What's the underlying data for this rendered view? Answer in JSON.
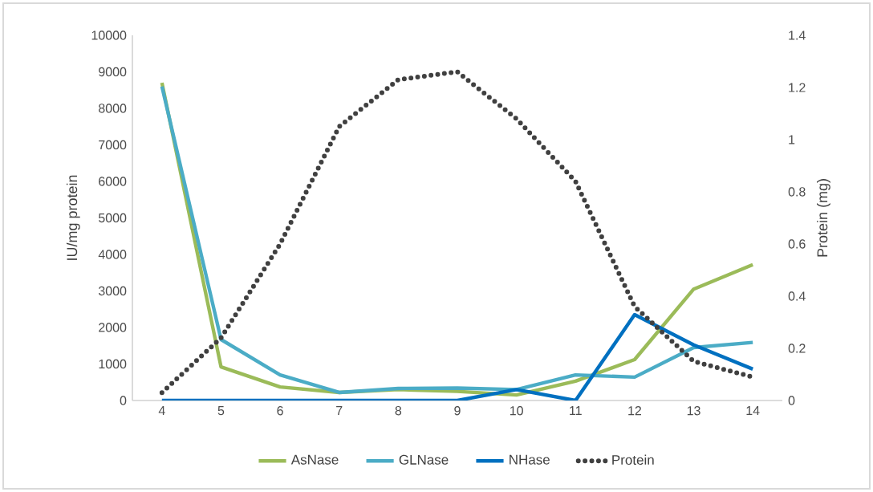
{
  "chart_data": {
    "type": "line",
    "ylabel": "IU/mg protein",
    "y2label": "Protein (mg)",
    "categories": [
      "4",
      "5",
      "6",
      "7",
      "8",
      "9",
      "10",
      "11",
      "12",
      "13",
      "14"
    ],
    "ylim": [
      0,
      10000
    ],
    "yticks": [
      0,
      1000,
      2000,
      3000,
      4000,
      5000,
      6000,
      7000,
      8000,
      9000,
      10000
    ],
    "y2lim": [
      0,
      1.4
    ],
    "y2ticks": [
      0,
      0.2,
      0.4,
      0.6,
      0.8,
      1,
      1.2,
      1.4
    ],
    "legend": "bottom",
    "grid": false,
    "marker": "none",
    "series": [
      {
        "name": "AsNase",
        "color": "#9bbb59",
        "line_style": "solid",
        "values": [
          8700,
          920,
          370,
          220,
          300,
          250,
          150,
          530,
          1120,
          3050,
          3720
        ]
      },
      {
        "name": "GLNase",
        "color": "#4bacc6",
        "line_style": "solid",
        "values": [
          8600,
          1670,
          700,
          220,
          330,
          340,
          300,
          700,
          640,
          1450,
          1590
        ]
      },
      {
        "name": "NHase",
        "color": "#0070c0",
        "line_style": "solid",
        "values": [
          0,
          0,
          0,
          0,
          0,
          0,
          300,
          0,
          2350,
          1520,
          860
        ]
      },
      {
        "name": "Protein",
        "color": "#404040",
        "line_style": "dotted",
        "axis": "y2",
        "values": [
          0.03,
          0.24,
          0.6,
          1.05,
          1.23,
          1.26,
          1.08,
          0.84,
          0.36,
          0.15,
          0.09
        ]
      }
    ]
  }
}
